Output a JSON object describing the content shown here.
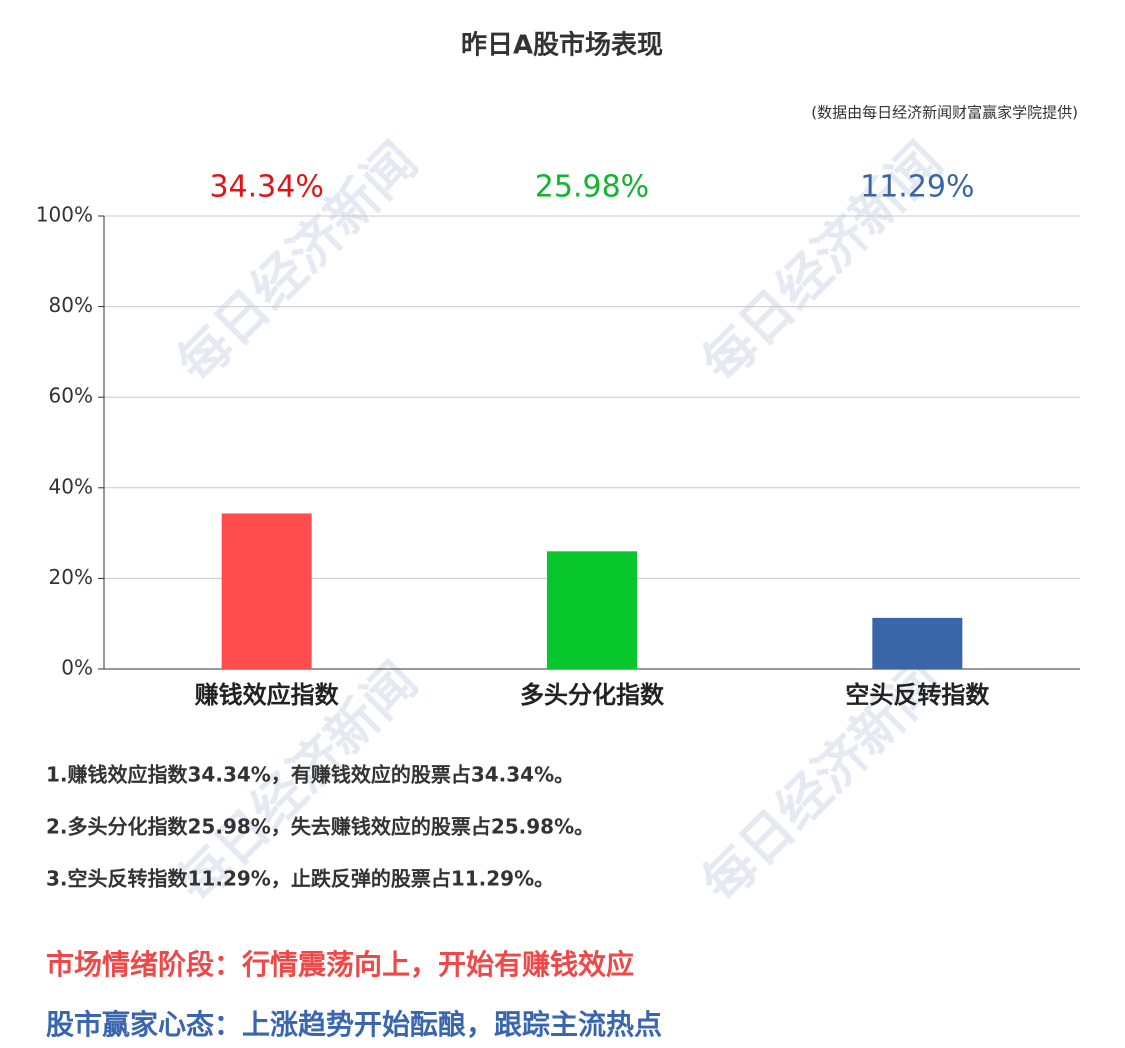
{
  "chart_data": {
    "type": "bar",
    "title": "昨日A股市场表现",
    "subtitle": "(数据由每日经济新闻财富赢家学院提供)",
    "categories": [
      "赚钱效应指数",
      "多头分化指数",
      "空头反转指数"
    ],
    "values": [
      34.34,
      25.98,
      11.29
    ],
    "value_labels": [
      "34.34%",
      "25.98%",
      "11.29%"
    ],
    "colors": [
      "#ff4d4d",
      "#07c72d",
      "#3a66a8"
    ],
    "value_label_colors": [
      "#e01414",
      "#12b530",
      "#3a66a8"
    ],
    "ylim": [
      0,
      100
    ],
    "yticks": [
      {
        "value": 0,
        "label": "0%"
      },
      {
        "value": 20,
        "label": "20%"
      },
      {
        "value": 40,
        "label": "40%"
      },
      {
        "value": 60,
        "label": "60%"
      },
      {
        "value": 80,
        "label": "80%"
      },
      {
        "value": 100,
        "label": "100%"
      }
    ],
    "grid": true
  },
  "watermark": "每日经济新闻",
  "notes": [
    "1.赚钱效应指数34.34%，有赚钱效应的股票占34.34%。",
    "2.多头分化指数25.98%，失去赚钱效应的股票占25.98%。",
    "3.空头反转指数11.29%，止跌反弹的股票占11.29%。"
  ],
  "conclusions": [
    {
      "text": "市场情绪阶段：行情震荡向上，开始有赚钱效应",
      "color": "#f04848"
    },
    {
      "text": "股市赢家心态：上涨趋势开始酝酿，跟踪主流热点",
      "color": "#3a66b0"
    }
  ]
}
